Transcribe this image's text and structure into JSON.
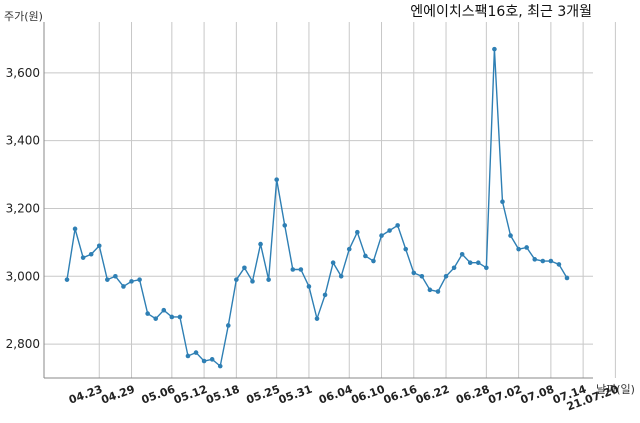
{
  "chart_data": {
    "type": "line",
    "title": "엔에이치스팩16호, 최근 3개월",
    "ylabel": "주가(원)",
    "xlabel": "날짜(일)",
    "ylim": [
      2700,
      3750
    ],
    "yticks": [
      2800,
      3000,
      3200,
      3400,
      3600
    ],
    "ytick_labels": [
      "2,800",
      "3,000",
      "3,200",
      "3,400",
      "3,600"
    ],
    "xtick_labels": [
      "04.23",
      "04.29",
      "05.06",
      "05.12",
      "05.18",
      "05.25",
      "05.31",
      "06.04",
      "06.10",
      "06.16",
      "06.22",
      "06.28",
      "07.02",
      "07.08",
      "07.14",
      "21.07.20"
    ],
    "xtick_index": [
      4,
      8,
      13,
      17,
      21,
      26,
      30,
      35,
      39,
      43,
      47,
      52,
      56,
      60,
      64,
      68
    ],
    "grid": true,
    "series": [
      {
        "color": "#2e7fb4",
        "values": [
          2990,
          3140,
          3055,
          3065,
          3090,
          2990,
          3000,
          2970,
          2985,
          2990,
          2890,
          2875,
          2900,
          2880,
          2880,
          2765,
          2775,
          2750,
          2755,
          2735,
          2855,
          2990,
          3025,
          2985,
          3095,
          2990,
          3285,
          3150,
          3020,
          3020,
          2970,
          2875,
          2945,
          3040,
          3000,
          3080,
          3130,
          3060,
          3045,
          3120,
          3135,
          3150,
          3080,
          3010,
          3000,
          2960,
          2955,
          3000,
          3025,
          3065,
          3040,
          3040,
          3025,
          3670,
          3220,
          3120,
          3080,
          3085,
          3050,
          3045,
          3045,
          3035,
          2995
        ]
      }
    ]
  }
}
